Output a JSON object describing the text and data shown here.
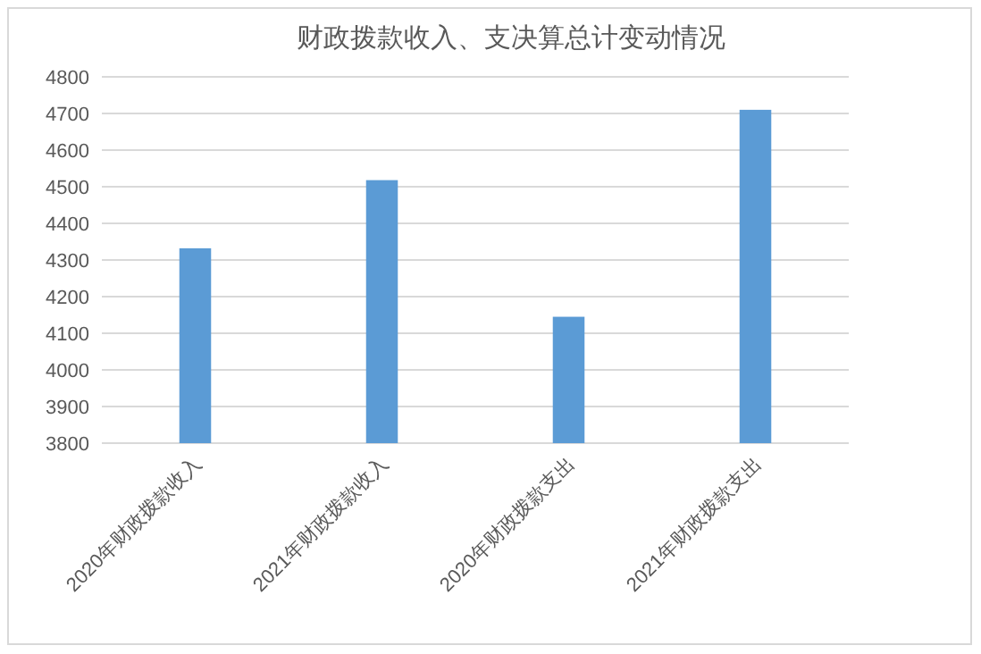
{
  "chart_data": {
    "type": "bar",
    "title": "财政拨款收入、支决算总计变动情况",
    "categories": [
      "2020年财政拨款收入",
      "2021年财政拨款收入",
      "2020年财政拨款支出",
      "2021年财政拨款支出"
    ],
    "values": [
      4332,
      4518,
      4145,
      4710
    ],
    "color": "#5b9bd5",
    "ylim": [
      3800,
      4800
    ],
    "yticks": [
      3800,
      3900,
      4000,
      4100,
      4200,
      4300,
      4400,
      4500,
      4600,
      4700,
      4800
    ],
    "grid": "y"
  }
}
